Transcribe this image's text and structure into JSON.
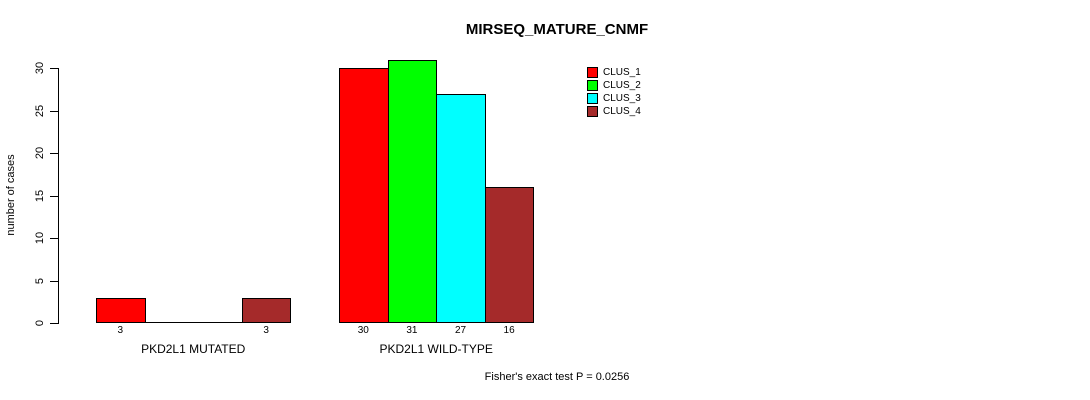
{
  "title": "MIRSEQ_MATURE_CNMF",
  "footer": "Fisher's exact test P = 0.0256",
  "chart_data": {
    "type": "bar",
    "title": "MIRSEQ_MATURE_CNMF",
    "xlabel": "",
    "ylabel": "number of cases",
    "categories": [
      "PKD2L1 MUTATED",
      "PKD2L1 WILD-TYPE"
    ],
    "series": [
      {
        "name": "CLUS_1",
        "color": "#FF0000",
        "values": [
          3,
          30
        ]
      },
      {
        "name": "CLUS_2",
        "color": "#00FF00",
        "values": [
          0,
          31
        ]
      },
      {
        "name": "CLUS_3",
        "color": "#00FFFF",
        "values": [
          0,
          27
        ]
      },
      {
        "name": "CLUS_4",
        "color": "#A52A2A",
        "values": [
          3,
          16
        ]
      }
    ],
    "bar_value_labels": {
      "PKD2L1 MUTATED": [
        "3",
        "",
        "",
        "3"
      ],
      "PKD2L1 WILD-TYPE": [
        "30",
        "31",
        "27",
        "16"
      ]
    },
    "yticks": [
      0,
      5,
      10,
      15,
      20,
      25,
      30
    ],
    "ylim": [
      0,
      31
    ],
    "grid": false,
    "legend_position": "top-right",
    "legend_entries": [
      "CLUS_1",
      "CLUS_2",
      "CLUS_3",
      "CLUS_4"
    ],
    "annotation": "Fisher's exact test P = 0.0256",
    "background_color": "#FFFFFF",
    "bar_border_color": "#000000"
  }
}
